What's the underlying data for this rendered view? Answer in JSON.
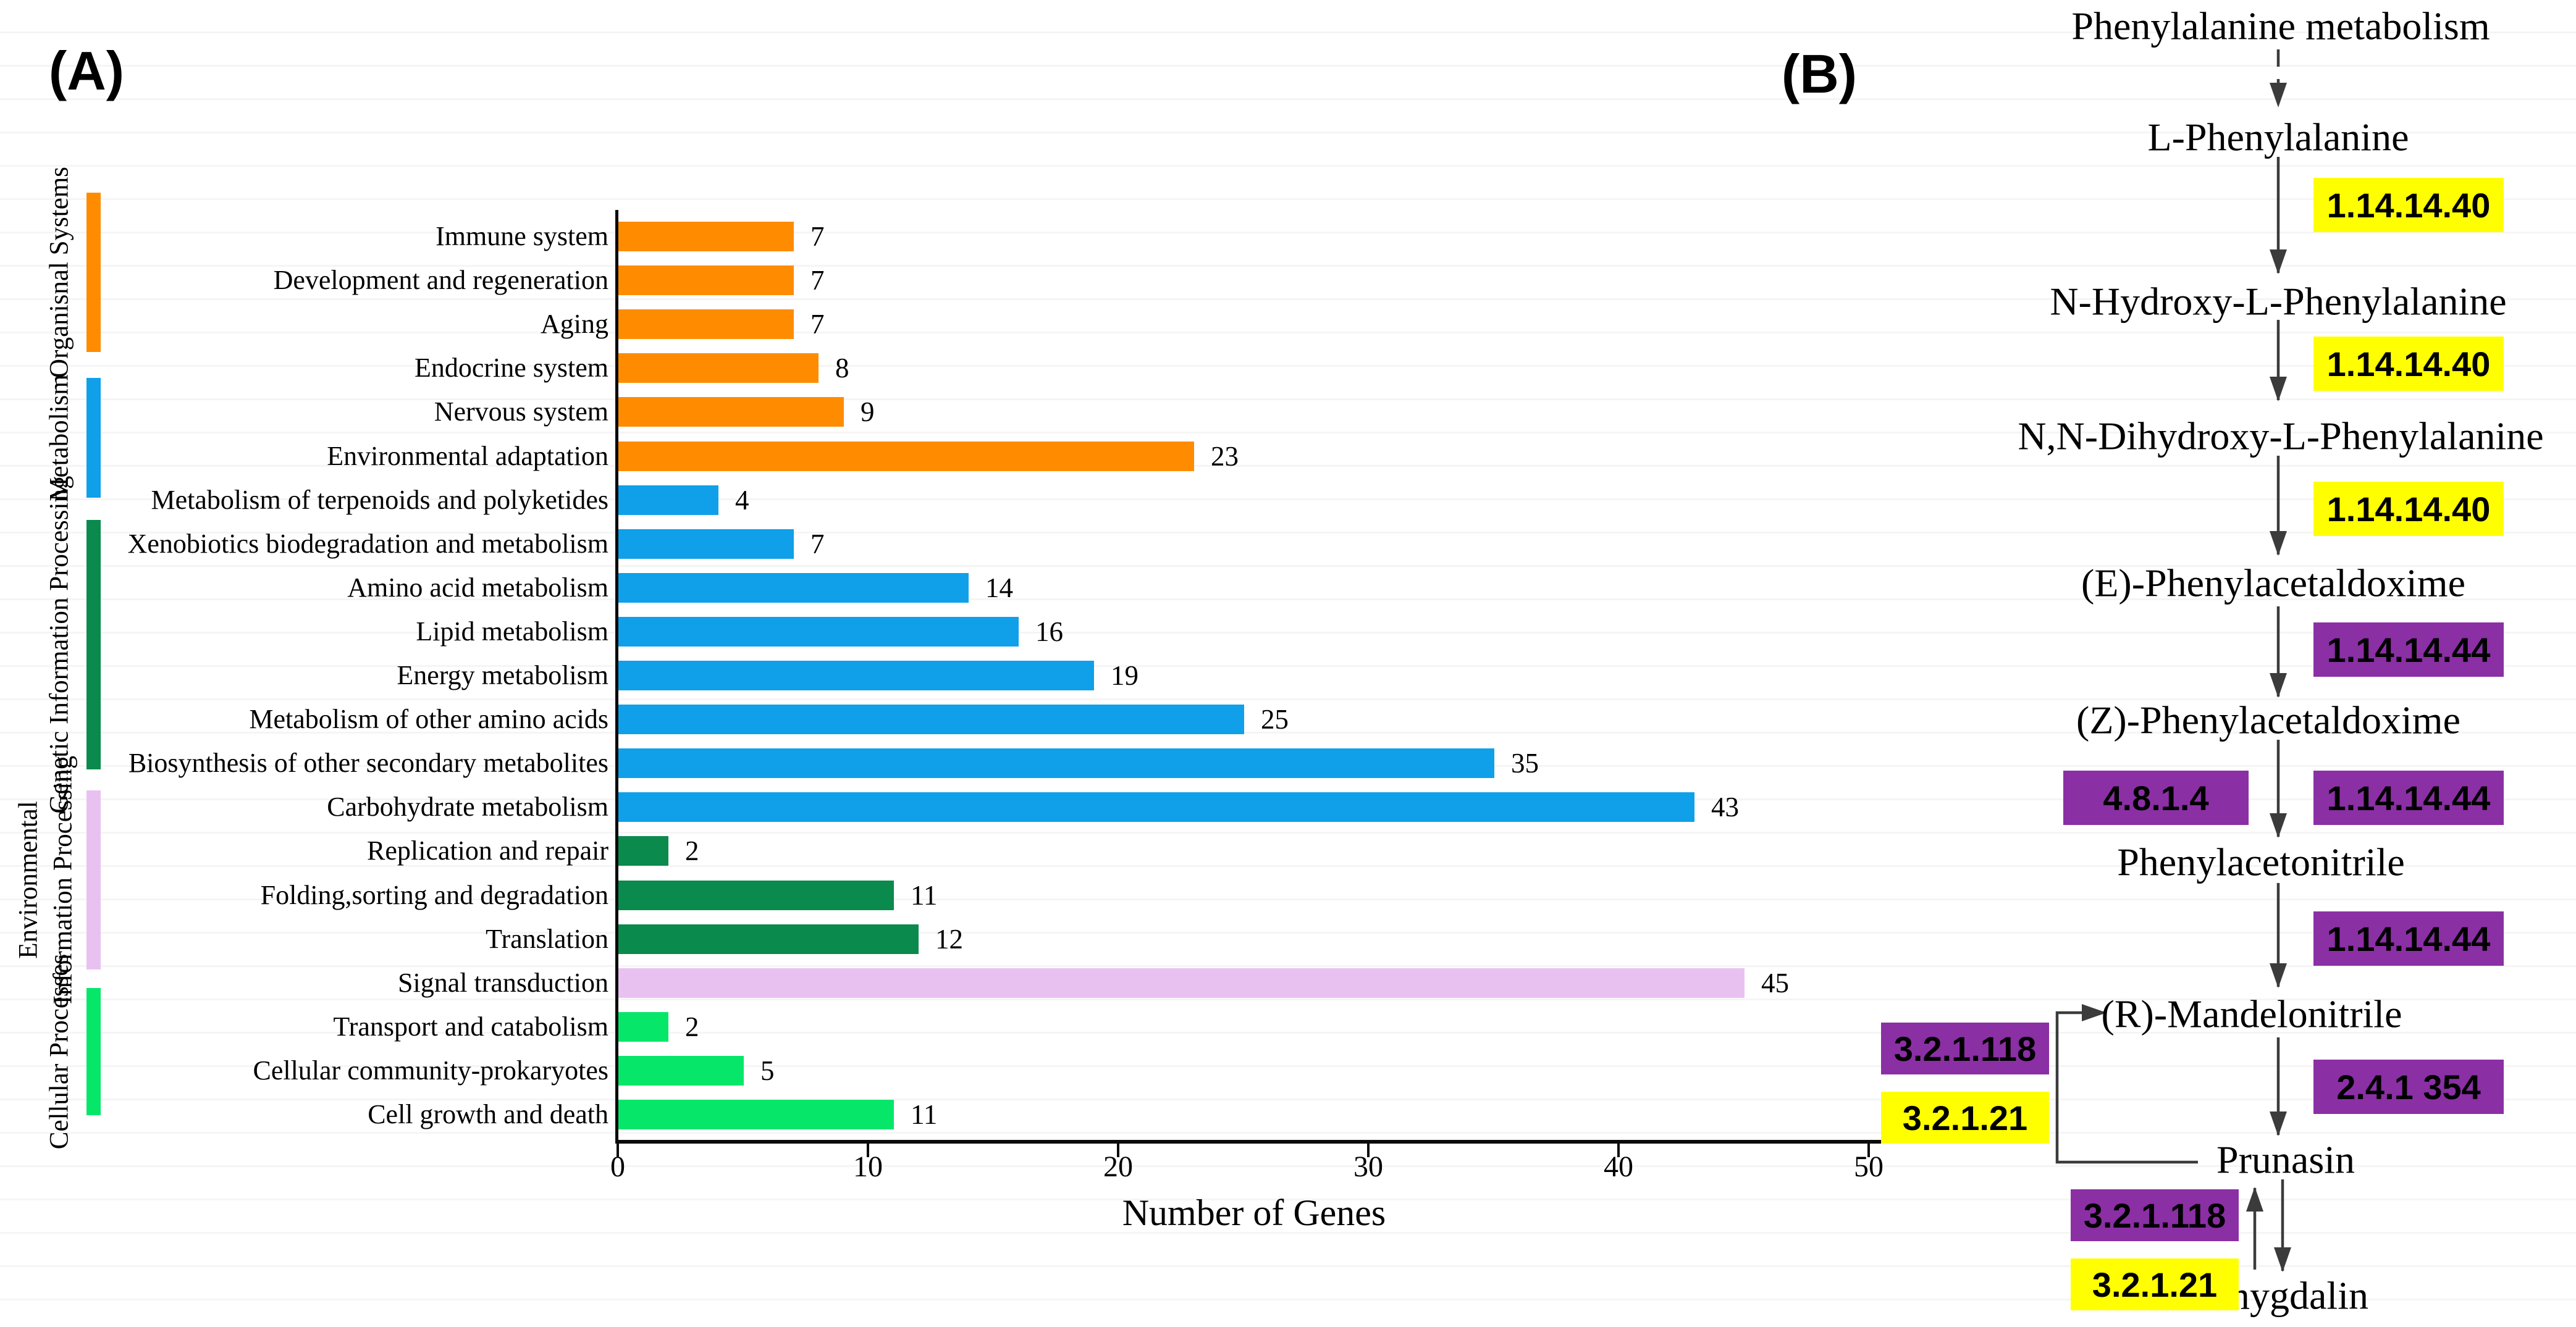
{
  "figure": {
    "panel_a_label": "(A)",
    "panel_b_label": "(B)"
  },
  "chart_data": {
    "type": "bar",
    "orientation": "horizontal",
    "title": "",
    "xlabel": "Number of Genes",
    "ylabel": "",
    "xlim": [
      0,
      50
    ],
    "x_ticks": [
      "0",
      "10",
      "20",
      "30",
      "40",
      "50"
    ],
    "grid": "off",
    "legend": "none",
    "value_labels": "shown at bar ends",
    "groups": [
      {
        "label": "Organisnal Systems",
        "lines": [
          "Organisnal Systems"
        ],
        "color": "#FF8C00"
      },
      {
        "label": "Metabolism",
        "lines": [
          "Metabolism"
        ],
        "color": "#0FA0E9"
      },
      {
        "label": "Genetic Information Processing",
        "lines": [
          "Genetic Information Processing"
        ],
        "color": "#0A8A4C"
      },
      {
        "label": "Environmental Information Processing",
        "lines": [
          "Environmental",
          "Information Processing"
        ],
        "color": "#E9C1F1"
      },
      {
        "label": "Cellular Processes",
        "lines": [
          "Cellular Processes"
        ],
        "color": "#06E76A"
      }
    ],
    "bars": [
      {
        "label": "Immune system",
        "value": 7,
        "group": 0
      },
      {
        "label": "Development and regeneration",
        "value": 7,
        "group": 0
      },
      {
        "label": "Aging",
        "value": 7,
        "group": 0
      },
      {
        "label": "Endocrine system",
        "value": 8,
        "group": 0
      },
      {
        "label": "Nervous system",
        "value": 9,
        "group": 0
      },
      {
        "label": "Environmental adaptation",
        "value": 23,
        "group": 0
      },
      {
        "label": "Metabolism of terpenoids and polyketides",
        "value": 4,
        "group": 1
      },
      {
        "label": "Xenobiotics biodegradation and metabolism",
        "value": 7,
        "group": 1
      },
      {
        "label": "Amino acid metabolism",
        "value": 14,
        "group": 1
      },
      {
        "label": "Lipid metabolism",
        "value": 16,
        "group": 1
      },
      {
        "label": "Energy metabolism",
        "value": 19,
        "group": 1
      },
      {
        "label": "Metabolism of other amino acids",
        "value": 25,
        "group": 1
      },
      {
        "label": "Biosynthesis of other secondary metabolites",
        "value": 35,
        "group": 1
      },
      {
        "label": "Carbohydrate metabolism",
        "value": 43,
        "group": 1
      },
      {
        "label": "Replication and repair",
        "value": 2,
        "group": 2
      },
      {
        "label": "Folding,sorting and degradation",
        "value": 11,
        "group": 2
      },
      {
        "label": "Translation",
        "value": 12,
        "group": 2
      },
      {
        "label": "Signal transduction",
        "value": 45,
        "group": 3
      },
      {
        "label": "Transport and catabolism",
        "value": 2,
        "group": 4
      },
      {
        "label": "Cellular community-prokaryotes",
        "value": 5,
        "group": 4
      },
      {
        "label": "Cell growth and death",
        "value": 11,
        "group": 4
      }
    ]
  },
  "pathway": {
    "colors": {
      "yellow": "#FFFF00",
      "purple": "#8B2FA5"
    },
    "compounds": [
      {
        "name": "Phenylalanine metabolism"
      },
      {
        "name": "L-Phenylalanine"
      },
      {
        "name": "N-Hydroxy-L-Phenylalanine"
      },
      {
        "name": "N,N-Dihydroxy-L-Phenylalanine"
      },
      {
        "name": "(E)-Phenylacetaldoxime"
      },
      {
        "name": "(Z)-Phenylacetaldoxime"
      },
      {
        "name": "Phenylacetonitrile"
      },
      {
        "name": "(R)-Mandelonitrile"
      },
      {
        "name": "Prunasin"
      },
      {
        "name": "Amygdalin"
      }
    ],
    "ec_boxes": [
      {
        "label": "1.14.14.40",
        "color": "yellow"
      },
      {
        "label": "1.14.14.40",
        "color": "yellow"
      },
      {
        "label": "1.14.14.40",
        "color": "yellow"
      },
      {
        "label": "1.14.14.44",
        "color": "purple"
      },
      {
        "label": "4.8.1.4",
        "color": "purple"
      },
      {
        "label": "1.14.14.44",
        "color": "purple"
      },
      {
        "label": "1.14.14.44",
        "color": "purple"
      },
      {
        "label": "2.4.1 354",
        "color": "purple"
      },
      {
        "label": "3.2.1.118",
        "color": "purple"
      },
      {
        "label": "3.2.1.21",
        "color": "yellow"
      },
      {
        "label": "3.2.1.118",
        "color": "purple"
      },
      {
        "label": "3.2.1.21",
        "color": "yellow"
      }
    ],
    "edges": [
      {
        "from": "Phenylalanine metabolism",
        "to": "L-Phenylalanine",
        "style": "dashed"
      },
      {
        "from": "L-Phenylalanine",
        "to": "N-Hydroxy-L-Phenylalanine",
        "ec": "1.14.14.40"
      },
      {
        "from": "N-Hydroxy-L-Phenylalanine",
        "to": "N,N-Dihydroxy-L-Phenylalanine",
        "ec": "1.14.14.40"
      },
      {
        "from": "N,N-Dihydroxy-L-Phenylalanine",
        "to": "(E)-Phenylacetaldoxime",
        "ec": "1.14.14.40"
      },
      {
        "from": "(E)-Phenylacetaldoxime",
        "to": "(Z)-Phenylacetaldoxime",
        "ec": "1.14.14.44"
      },
      {
        "from": "(Z)-Phenylacetaldoxime",
        "to": "Phenylacetonitrile",
        "ec": "4.8.1.4 / 1.14.14.44"
      },
      {
        "from": "Phenylacetonitrile",
        "to": "(R)-Mandelonitrile",
        "ec": "1.14.14.44"
      },
      {
        "from": "(R)-Mandelonitrile",
        "to": "Prunasin",
        "ec": "2.4.1 354"
      },
      {
        "from": "Prunasin",
        "to": "(R)-Mandelonitrile",
        "style": "elbow",
        "ec": "3.2.1.118 / 3.2.1.21"
      },
      {
        "from": "Prunasin",
        "to": "Amygdalin",
        "style": "double-arrow",
        "ec": "3.2.1.118 / 3.2.1.21"
      }
    ]
  }
}
